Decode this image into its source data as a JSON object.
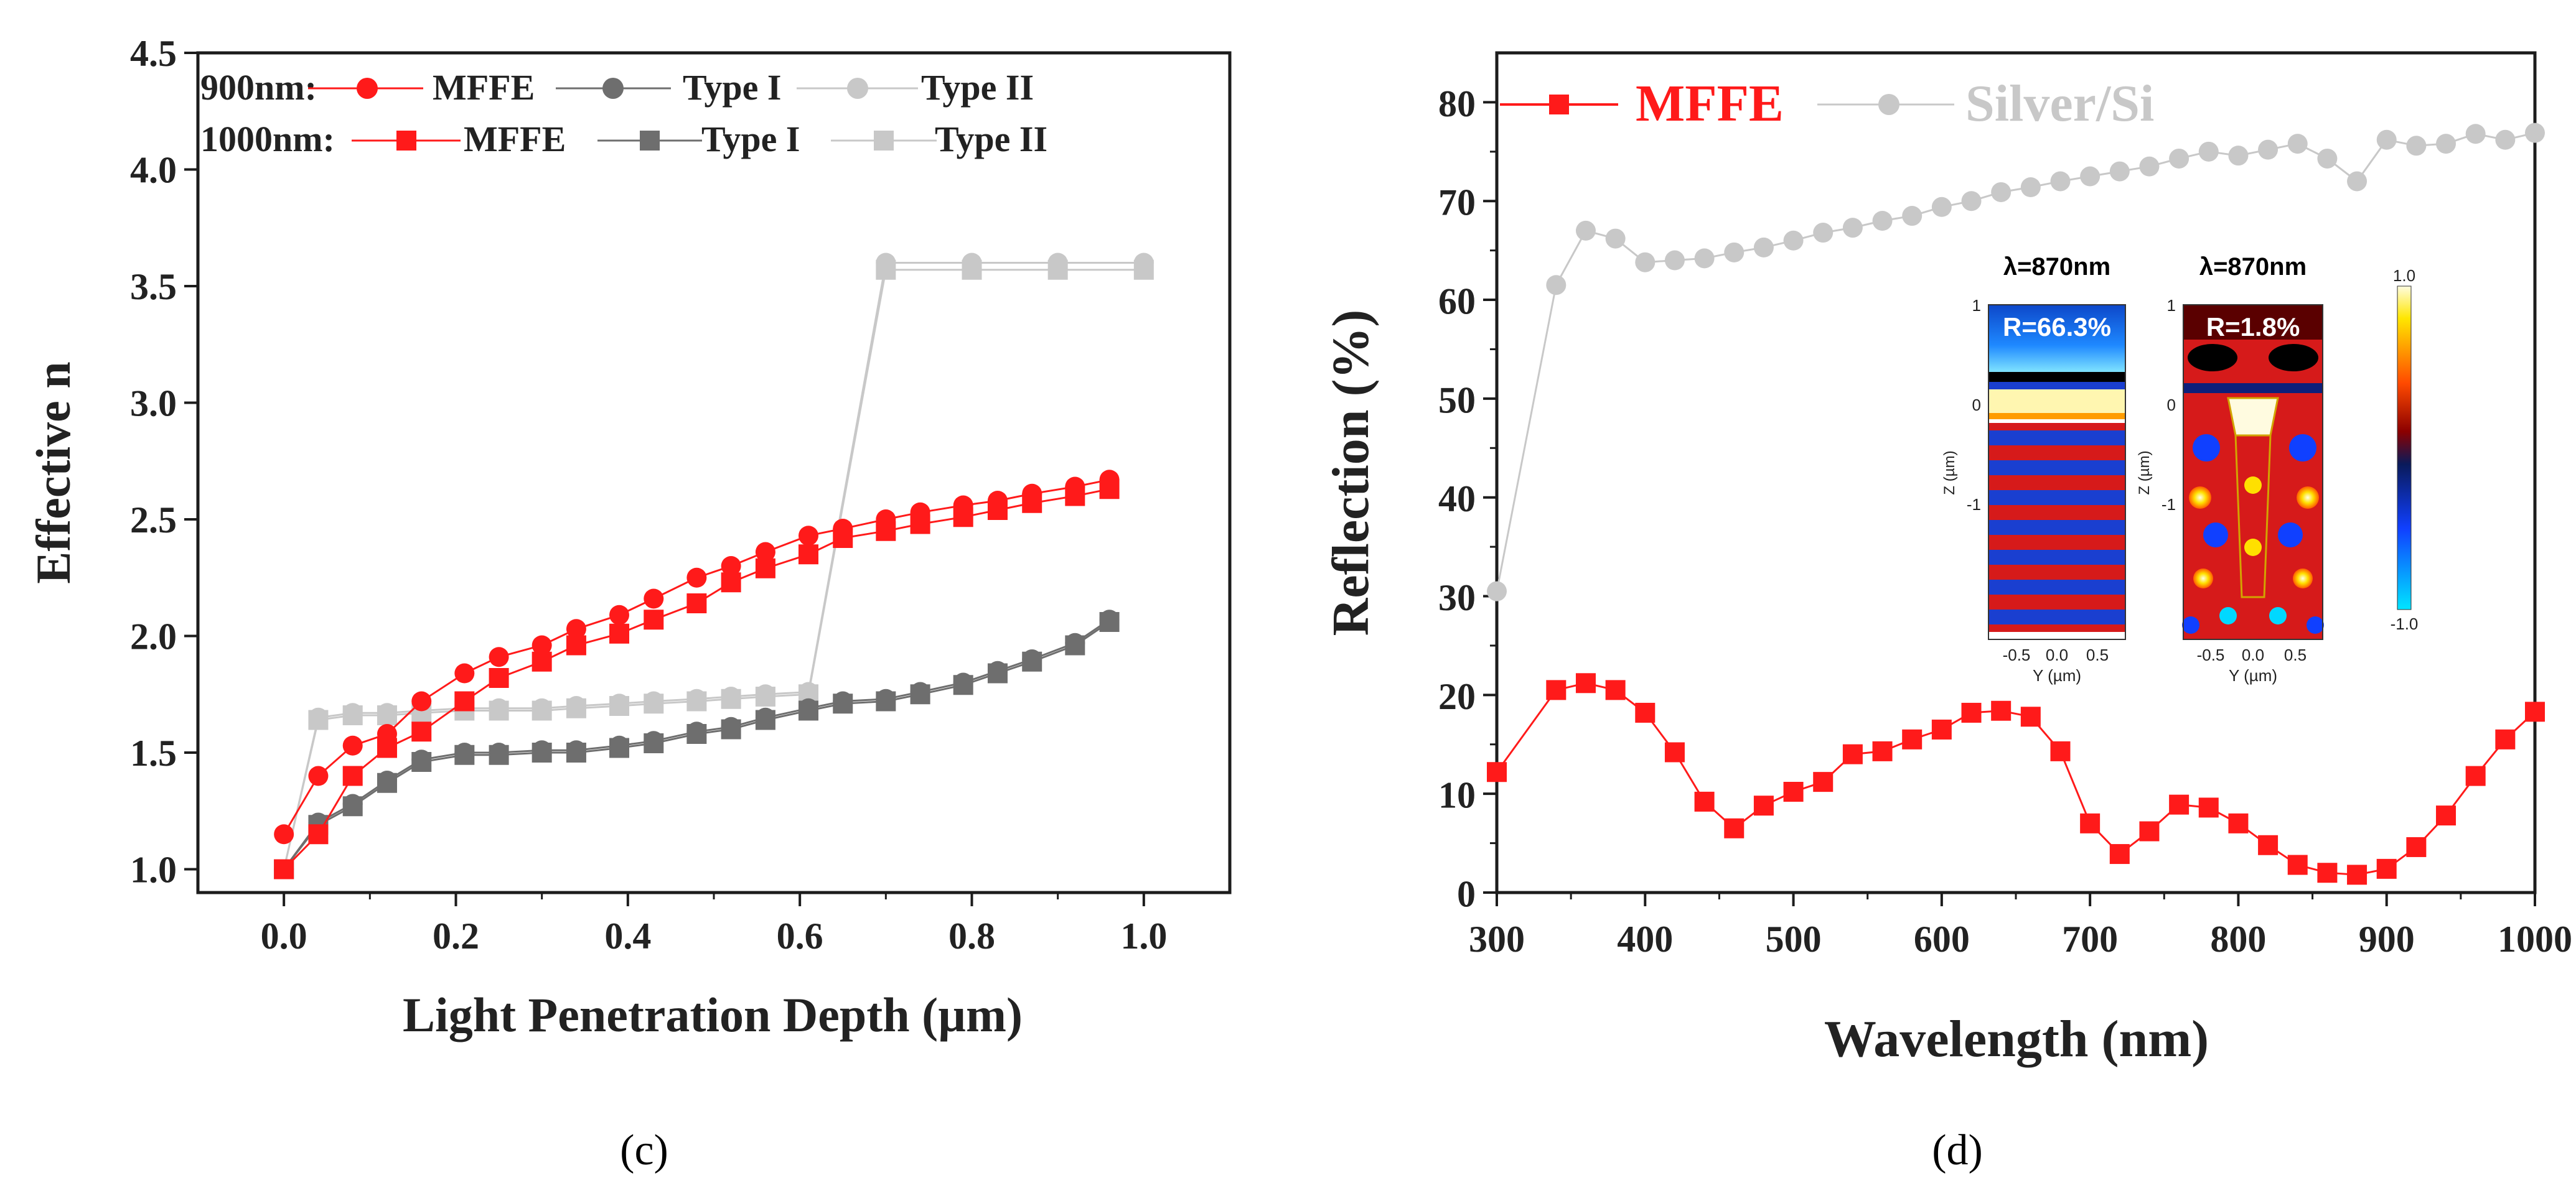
{
  "chart_data": [
    {
      "type": "line",
      "panel_label": "c",
      "xlabel": "Light Penetration Depth (µm)",
      "ylabel": "Effective n",
      "xlim": [
        -0.1,
        1.1
      ],
      "ylim": [
        0.9,
        4.5
      ],
      "xticks": [
        "0.0",
        "0.2",
        "0.4",
        "0.6",
        "0.8",
        "1.0"
      ],
      "yticks": [
        "1.0",
        "1.5",
        "2.0",
        "2.5",
        "3.0",
        "3.5",
        "4.0",
        "4.5"
      ],
      "legend_rows": [
        {
          "label": "900nm:",
          "entries": [
            {
              "name": "MFFE",
              "color": "#ff1a1a",
              "marker": "circle"
            },
            {
              "name": "Type I",
              "color": "#6e6e6e",
              "marker": "circle"
            },
            {
              "name": "Type II",
              "color": "#c8c8c8",
              "marker": "circle"
            }
          ]
        },
        {
          "label": "1000nm:",
          "entries": [
            {
              "name": "MFFE",
              "color": "#ff1a1a",
              "marker": "square"
            },
            {
              "name": "Type I",
              "color": "#6e6e6e",
              "marker": "square"
            },
            {
              "name": "Type II",
              "color": "#c8c8c8",
              "marker": "square"
            }
          ]
        }
      ],
      "series": [
        {
          "name": "900nm MFFE",
          "color": "#ff1a1a",
          "marker": "circle",
          "x": [
            0,
            0.04,
            0.08,
            0.12,
            0.16,
            0.21,
            0.25,
            0.3,
            0.34,
            0.39,
            0.43,
            0.48,
            0.52,
            0.56,
            0.61,
            0.65,
            0.7,
            0.74,
            0.79,
            0.83,
            0.87,
            0.92,
            0.96
          ],
          "y": [
            1.15,
            1.4,
            1.53,
            1.58,
            1.72,
            1.84,
            1.91,
            1.96,
            2.03,
            2.09,
            2.16,
            2.25,
            2.3,
            2.36,
            2.43,
            2.46,
            2.5,
            2.53,
            2.56,
            2.58,
            2.61,
            2.64,
            2.67
          ]
        },
        {
          "name": "1000nm MFFE",
          "color": "#ff1a1a",
          "marker": "square",
          "x": [
            0,
            0.04,
            0.08,
            0.12,
            0.16,
            0.21,
            0.25,
            0.3,
            0.34,
            0.39,
            0.43,
            0.48,
            0.52,
            0.56,
            0.61,
            0.65,
            0.7,
            0.74,
            0.79,
            0.83,
            0.87,
            0.92,
            0.96
          ],
          "y": [
            1.0,
            1.15,
            1.4,
            1.52,
            1.59,
            1.72,
            1.82,
            1.89,
            1.96,
            2.01,
            2.07,
            2.14,
            2.23,
            2.29,
            2.35,
            2.42,
            2.45,
            2.48,
            2.51,
            2.54,
            2.57,
            2.6,
            2.63
          ]
        },
        {
          "name": "900nm Type I",
          "color": "#6e6e6e",
          "marker": "circle",
          "x": [
            0,
            0.04,
            0.08,
            0.12,
            0.16,
            0.21,
            0.25,
            0.3,
            0.34,
            0.39,
            0.43,
            0.48,
            0.52,
            0.56,
            0.61,
            0.65,
            0.7,
            0.74,
            0.79,
            0.83,
            0.87,
            0.92,
            0.96
          ],
          "y": [
            1.0,
            1.2,
            1.28,
            1.38,
            1.47,
            1.5,
            1.5,
            1.51,
            1.51,
            1.53,
            1.55,
            1.59,
            1.61,
            1.65,
            1.69,
            1.72,
            1.73,
            1.76,
            1.8,
            1.85,
            1.9,
            1.97,
            2.07
          ]
        },
        {
          "name": "1000nm Type I",
          "color": "#6e6e6e",
          "marker": "square",
          "x": [
            0,
            0.04,
            0.08,
            0.12,
            0.16,
            0.21,
            0.25,
            0.3,
            0.34,
            0.39,
            0.43,
            0.48,
            0.52,
            0.56,
            0.61,
            0.65,
            0.7,
            0.74,
            0.79,
            0.83,
            0.87,
            0.92,
            0.96
          ],
          "y": [
            1.0,
            1.19,
            1.27,
            1.37,
            1.46,
            1.49,
            1.49,
            1.5,
            1.5,
            1.52,
            1.54,
            1.58,
            1.6,
            1.64,
            1.68,
            1.71,
            1.72,
            1.75,
            1.79,
            1.84,
            1.89,
            1.96,
            2.06
          ]
        },
        {
          "name": "900nm Type II",
          "color": "#c8c8c8",
          "marker": "circle",
          "x": [
            0,
            0.04,
            0.08,
            0.12,
            0.16,
            0.21,
            0.25,
            0.3,
            0.34,
            0.39,
            0.43,
            0.48,
            0.52,
            0.56,
            0.61,
            0.7,
            0.8,
            0.9,
            1.0
          ],
          "y": [
            1.0,
            1.65,
            1.67,
            1.67,
            1.68,
            1.69,
            1.69,
            1.69,
            1.7,
            1.71,
            1.72,
            1.73,
            1.74,
            1.75,
            1.76,
            3.6,
            3.6,
            3.6,
            3.6
          ]
        },
        {
          "name": "1000nm Type II",
          "color": "#c8c8c8",
          "marker": "square",
          "x": [
            0,
            0.04,
            0.08,
            0.12,
            0.16,
            0.21,
            0.25,
            0.3,
            0.34,
            0.39,
            0.43,
            0.48,
            0.52,
            0.56,
            0.61,
            0.7,
            0.8,
            0.9,
            1.0
          ],
          "y": [
            1.0,
            1.64,
            1.66,
            1.66,
            1.67,
            1.68,
            1.68,
            1.68,
            1.69,
            1.7,
            1.71,
            1.72,
            1.73,
            1.74,
            1.75,
            3.57,
            3.57,
            3.57,
            3.57
          ]
        }
      ]
    },
    {
      "type": "line",
      "panel_label": "d",
      "xlabel": "Wavelength (nm)",
      "ylabel": "Reflection (%)",
      "xlim": [
        300,
        1000
      ],
      "ylim": [
        0,
        85
      ],
      "xticks": [
        "300",
        "400",
        "500",
        "600",
        "700",
        "800",
        "900",
        "1000"
      ],
      "yticks": [
        "0",
        "10",
        "20",
        "30",
        "40",
        "50",
        "60",
        "70",
        "80"
      ],
      "series": [
        {
          "name": "MFFE",
          "color": "#ff1a1a",
          "marker": "square",
          "x": [
            300,
            340,
            360,
            380,
            400,
            420,
            440,
            460,
            480,
            500,
            520,
            540,
            560,
            580,
            600,
            620,
            640,
            660,
            680,
            700,
            720,
            740,
            760,
            780,
            800,
            820,
            840,
            860,
            880,
            900,
            920,
            940,
            960,
            980,
            1000
          ],
          "y": [
            12.2,
            20.5,
            21.2,
            20.5,
            18.2,
            14.2,
            9.2,
            6.5,
            8.8,
            10.2,
            11.2,
            14.0,
            14.3,
            15.5,
            16.5,
            18.2,
            18.4,
            17.8,
            14.3,
            7.0,
            3.9,
            6.2,
            8.9,
            8.6,
            7.0,
            4.8,
            2.8,
            2.0,
            1.8,
            2.4,
            4.6,
            7.8,
            11.8,
            15.5,
            18.3
          ]
        },
        {
          "name": "Silver/Si",
          "color": "#c8c8c8",
          "marker": "circle",
          "x": [
            300,
            340,
            360,
            380,
            400,
            420,
            440,
            460,
            480,
            500,
            520,
            540,
            560,
            580,
            600,
            620,
            640,
            660,
            680,
            700,
            720,
            740,
            760,
            780,
            800,
            820,
            840,
            860,
            880,
            900,
            920,
            940,
            960,
            980,
            1000
          ],
          "y": [
            30.5,
            61.5,
            67.0,
            66.2,
            63.8,
            64.0,
            64.2,
            64.8,
            65.3,
            66.0,
            66.8,
            67.3,
            68.0,
            68.5,
            69.4,
            70.0,
            70.9,
            71.4,
            72.0,
            72.5,
            73.0,
            73.5,
            74.3,
            75.0,
            74.6,
            75.2,
            75.8,
            74.3,
            72.0,
            76.2,
            75.6,
            75.8,
            76.8,
            76.2,
            76.9
          ]
        }
      ],
      "inset_maps": [
        {
          "title": "λ=870nm",
          "annotation": "R=66.3%",
          "xlabel": "Y (µm)",
          "ylabel": "Z (µm)",
          "xticks": [
            "-0.5",
            "0.0",
            "0.5"
          ],
          "yticks": [
            "1",
            "0",
            "-1"
          ]
        },
        {
          "title": "λ=870nm",
          "annotation": "R=1.8%",
          "xlabel": "Y (µm)",
          "ylabel": "Z (µm)",
          "xticks": [
            "-0.5",
            "0.0",
            "0.5"
          ],
          "yticks": [
            "1",
            "0",
            "-1"
          ]
        }
      ],
      "colorbar": {
        "max_label": "1.0",
        "min_label": "-1.0"
      }
    }
  ],
  "captions": {
    "left": "(c)",
    "right": "(d)"
  }
}
